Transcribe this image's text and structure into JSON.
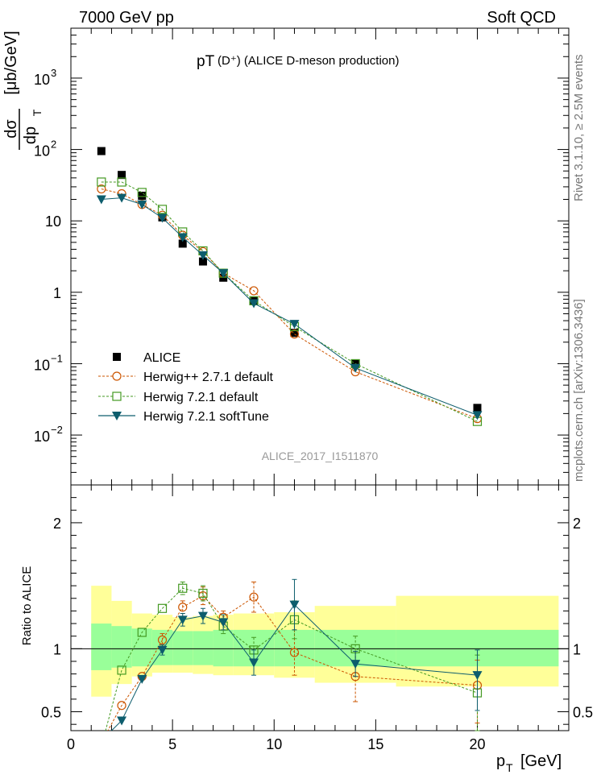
{
  "header": {
    "left": "7000 GeV pp",
    "right": "Soft QCD"
  },
  "side_labels": {
    "top": "Rivet 3.1.10, ≥ 2.5M events",
    "bottom": "mcplots.cern.ch [arXiv:1306.3436]"
  },
  "colors": {
    "alice": "#000000",
    "herwigpp": "#cc5500",
    "herwig721": "#449922",
    "softtune": "#0d5d6d",
    "band_inner": "#99ff99",
    "band_outer": "#ffff99"
  },
  "chart_data": [
    {
      "type": "scatter",
      "title": "pT(D⁺) (ALICE D-meson production)",
      "title_main": "pT",
      "title_sub": "(D⁺) (ALICE D-meson production)",
      "ylabel": "dσ/dp_T [μb/GeV]",
      "ylabel_num": "dσ",
      "ylabel_den": "dp",
      "ylabel_den_sub": "T",
      "ylabel_units": "[μb/GeV]",
      "yscale": "log",
      "ylim": [
        0.002,
        5000
      ],
      "xlim": [
        0,
        24.5
      ],
      "ytick_labels": [
        {
          "value": 0.01,
          "base": "10",
          "exp": "−2"
        },
        {
          "value": 0.1,
          "base": "10",
          "exp": "−1"
        },
        {
          "value": 1,
          "base": "1",
          "exp": ""
        },
        {
          "value": 10,
          "base": "10",
          "exp": ""
        },
        {
          "value": 100,
          "base": "10",
          "exp": "2"
        },
        {
          "value": 1000,
          "base": "10",
          "exp": "3"
        }
      ],
      "watermark": "ALICE_2017_I1511870",
      "legend_position": "bottom-left",
      "x": [
        1.5,
        2.5,
        3.5,
        4.5,
        5.5,
        6.5,
        7.5,
        9.0,
        11.0,
        14.0,
        20.0
      ],
      "series": [
        {
          "name": "ALICE",
          "marker": "filled-square",
          "values": [
            95,
            44,
            22.5,
            11.2,
            4.8,
            2.7,
            1.6,
            0.77,
            0.27,
            0.1,
            0.024
          ]
        },
        {
          "name": "Herwig++ 2.7.1 default",
          "marker": "open-circle",
          "style": "dashed",
          "values": [
            28,
            24,
            17,
            12,
            6.3,
            3.7,
            1.85,
            1.05,
            0.26,
            0.077,
            0.017
          ]
        },
        {
          "name": "Herwig 7.2.1 default",
          "marker": "open-square",
          "style": "dashed",
          "values": [
            35,
            35,
            25,
            14.5,
            7.0,
            3.8,
            1.85,
            0.76,
            0.33,
            0.1,
            0.0155
          ]
        },
        {
          "name": "Herwig 7.2.1 softTune",
          "marker": "filled-triangle-down",
          "style": "solid",
          "values": [
            20,
            21,
            17,
            11,
            5.9,
            3.3,
            1.85,
            0.7,
            0.36,
            0.087,
            0.019
          ]
        }
      ]
    },
    {
      "type": "line",
      "ylabel": "Ratio to ALICE",
      "xlabel": "p_T [GeV]",
      "xlabel_main": "p",
      "xlabel_sub": "T",
      "xlabel_units": "[GeV]",
      "ylim": [
        0.35,
        2.3
      ],
      "xlim": [
        0,
        24.5
      ],
      "xticks": [
        0,
        5,
        10,
        15,
        20
      ],
      "yticks": [
        0.5,
        1,
        2
      ],
      "reference_line": 1.0,
      "x": [
        2.5,
        3.5,
        4.5,
        5.5,
        6.5,
        7.5,
        9.0,
        11.0,
        14.0,
        20.0
      ],
      "series": [
        {
          "name": "Herwig++ 2.7.1 default",
          "values": [
            0.55,
            0.78,
            1.07,
            1.33,
            1.42,
            1.25,
            1.41,
            0.97,
            0.78,
            0.71
          ],
          "error_plus": [
            0.0,
            0.0,
            0.05,
            0.05,
            0.07,
            0.05,
            0.12,
            0.18,
            0.2,
            0.2
          ],
          "error_minus": [
            0.0,
            0.0,
            0.05,
            0.05,
            0.07,
            0.05,
            0.12,
            0.18,
            0.2,
            0.3
          ]
        },
        {
          "name": "Herwig 7.2.1 default",
          "values": [
            0.83,
            1.13,
            1.32,
            1.48,
            1.44,
            1.18,
            0.99,
            1.23,
            1.0,
            0.65
          ],
          "error_plus": [
            0.0,
            0.0,
            0.0,
            0.05,
            0.06,
            0.06,
            0.1,
            0.15,
            0.1,
            0.3
          ],
          "error_minus": [
            0.0,
            0.0,
            0.0,
            0.05,
            0.06,
            0.06,
            0.1,
            0.15,
            0.1,
            0.3
          ]
        },
        {
          "name": "Herwig 7.2.1 softTune",
          "values": [
            0.43,
            0.76,
            0.99,
            1.23,
            1.26,
            1.21,
            0.89,
            1.35,
            0.88,
            0.79
          ],
          "error_plus": [
            0.0,
            0.0,
            0.04,
            0.05,
            0.06,
            0.06,
            0.1,
            0.2,
            0.1,
            0.2
          ],
          "error_minus": [
            0.0,
            0.0,
            0.04,
            0.05,
            0.06,
            0.06,
            0.1,
            0.2,
            0.1,
            0.28
          ]
        }
      ],
      "bands": [
        {
          "x0": 1,
          "x1": 2,
          "inner": [
            0.83,
            1.2
          ],
          "outer": [
            0.62,
            1.5
          ]
        },
        {
          "x0": 2,
          "x1": 3,
          "inner": [
            0.85,
            1.18
          ],
          "outer": [
            0.72,
            1.38
          ]
        },
        {
          "x0": 3,
          "x1": 4,
          "inner": [
            0.86,
            1.16
          ],
          "outer": [
            0.78,
            1.28
          ]
        },
        {
          "x0": 4,
          "x1": 5,
          "inner": [
            0.87,
            1.15
          ],
          "outer": [
            0.81,
            1.27
          ]
        },
        {
          "x0": 5,
          "x1": 6,
          "inner": [
            0.87,
            1.14
          ],
          "outer": [
            0.81,
            1.25
          ]
        },
        {
          "x0": 6,
          "x1": 7,
          "inner": [
            0.87,
            1.14
          ],
          "outer": [
            0.8,
            1.26
          ]
        },
        {
          "x0": 7,
          "x1": 8,
          "inner": [
            0.86,
            1.15
          ],
          "outer": [
            0.79,
            1.27
          ]
        },
        {
          "x0": 8,
          "x1": 10,
          "inner": [
            0.86,
            1.15
          ],
          "outer": [
            0.79,
            1.28
          ]
        },
        {
          "x0": 10,
          "x1": 12,
          "inner": [
            0.86,
            1.15
          ],
          "outer": [
            0.77,
            1.29
          ]
        },
        {
          "x0": 12,
          "x1": 16,
          "inner": [
            0.86,
            1.15
          ],
          "outer": [
            0.73,
            1.34
          ]
        },
        {
          "x0": 16,
          "x1": 24,
          "inner": [
            0.86,
            1.15
          ],
          "outer": [
            0.7,
            1.42
          ]
        }
      ]
    }
  ]
}
